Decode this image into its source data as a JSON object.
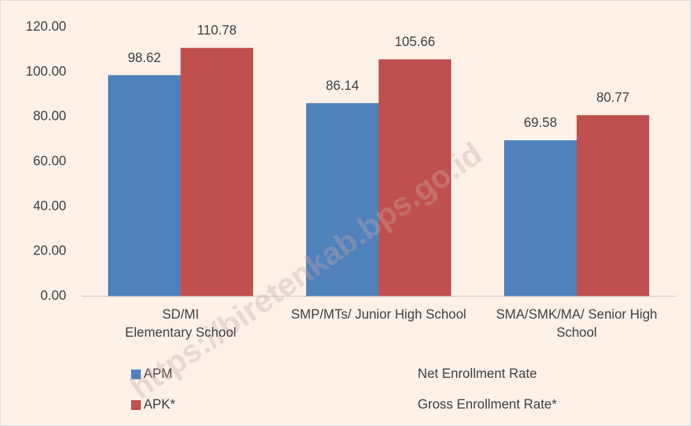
{
  "chart_data": {
    "type": "bar",
    "categories": [
      "SD/MI\nElementary School",
      "SMP/MTs/ Junior High School",
      "SMA/SMK/MA/ Senior High School"
    ],
    "series": [
      {
        "name": "APM",
        "description": "Net Enrollment Rate",
        "color": "#4f81bd",
        "values": [
          98.62,
          86.14,
          69.58
        ]
      },
      {
        "name": "APK*",
        "description": "Gross Enrollment Rate*",
        "color": "#c0504d",
        "values": [
          110.78,
          105.66,
          80.77
        ]
      }
    ],
    "ylim": [
      0,
      120
    ],
    "yticks": [
      {
        "value": 0,
        "label": "0.00"
      },
      {
        "value": 20,
        "label": "20.00"
      },
      {
        "value": 40,
        "label": "40.00"
      },
      {
        "value": 60,
        "label": "60.00"
      },
      {
        "value": 80,
        "label": "80.00"
      },
      {
        "value": 100,
        "label": "100.00"
      },
      {
        "value": 120,
        "label": "120.00"
      }
    ],
    "grid": false,
    "legend": "bottom",
    "watermark": "https://biretenkab.bps.go.id"
  }
}
